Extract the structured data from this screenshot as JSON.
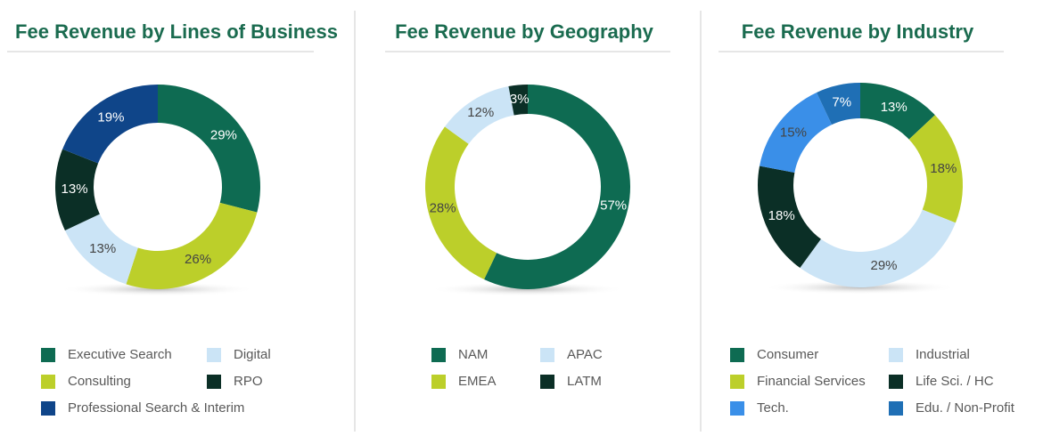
{
  "chart_data": [
    {
      "type": "donut",
      "title": "Fee Revenue by Lines of Business",
      "categories": [
        "Executive Search",
        "Consulting",
        "Digital",
        "RPO",
        "Professional Search & Interim"
      ],
      "values": [
        29,
        26,
        13,
        13,
        19
      ],
      "value_labels": [
        "29%",
        "26%",
        "13%",
        "13%",
        "19%"
      ],
      "colors": [
        "#0e6b52",
        "#bccf2a",
        "#cbe4f6",
        "#0b2f26",
        "#0f4589"
      ]
    },
    {
      "type": "donut",
      "title": "Fee Revenue by Geography",
      "categories": [
        "NAM",
        "EMEA",
        "APAC",
        "LATM"
      ],
      "values": [
        57,
        28,
        12,
        3
      ],
      "value_labels": [
        "57%",
        "28%",
        "12%",
        "3%"
      ],
      "colors": [
        "#0e6b52",
        "#bccf2a",
        "#cbe4f6",
        "#0b2f26"
      ]
    },
    {
      "type": "donut",
      "title": "Fee Revenue by Industry",
      "categories": [
        "Consumer",
        "Financial Services",
        "Industrial",
        "Life Sci. / HC",
        "Tech.",
        "Edu. / Non-Profit"
      ],
      "values": [
        13,
        18,
        29,
        18,
        15,
        7
      ],
      "value_labels": [
        "13%",
        "18%",
        "29%",
        "18%",
        "15%",
        "7%"
      ],
      "colors": [
        "#0e6b52",
        "#bccf2a",
        "#cbe4f6",
        "#0b2f26",
        "#3a8fe8",
        "#1f6fb5"
      ]
    }
  ]
}
